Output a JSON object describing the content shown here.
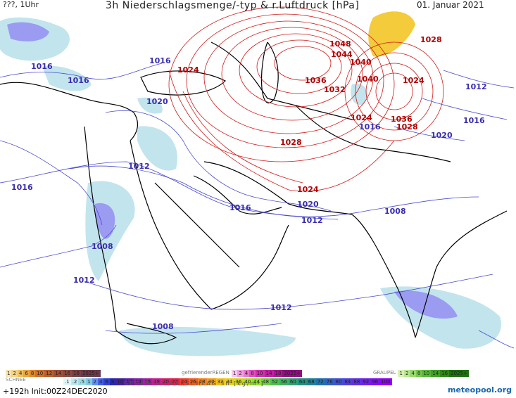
{
  "header": {
    "left": "???, 1Uhr",
    "title": "3h Niederschlagsmenge/-typ & r.Luftdruck [hPa]",
    "date": "01. Januar 2021"
  },
  "isobar_labels": [
    {
      "text": "1016",
      "kind": "lo"
    },
    {
      "text": "1016",
      "kind": "lo"
    },
    {
      "text": "1016",
      "kind": "lo"
    },
    {
      "text": "1024",
      "kind": "hi"
    },
    {
      "text": "1020",
      "kind": "lo"
    },
    {
      "text": "1048",
      "kind": "hi"
    },
    {
      "text": "1044",
      "kind": "hi"
    },
    {
      "text": "1040",
      "kind": "hi"
    },
    {
      "text": "1036",
      "kind": "hi"
    },
    {
      "text": "1032",
      "kind": "hi"
    },
    {
      "text": "1040",
      "kind": "hi"
    },
    {
      "text": "1028",
      "kind": "hi"
    },
    {
      "text": "1024",
      "kind": "hi"
    },
    {
      "text": "1012",
      "kind": "lo"
    },
    {
      "text": "1016",
      "kind": "lo"
    },
    {
      "text": "1024",
      "kind": "hi"
    },
    {
      "text": "1036",
      "kind": "hi"
    },
    {
      "text": "1028",
      "kind": "hi"
    },
    {
      "text": "1016",
      "kind": "lo"
    },
    {
      "text": "1020",
      "kind": "lo"
    },
    {
      "text": "1028",
      "kind": "hi"
    },
    {
      "text": "1012",
      "kind": "lo"
    },
    {
      "text": "1016",
      "kind": "lo"
    },
    {
      "text": "1024",
      "kind": "hi"
    },
    {
      "text": "1020",
      "kind": "lo"
    },
    {
      "text": "1016",
      "kind": "lo"
    },
    {
      "text": "1012",
      "kind": "lo"
    },
    {
      "text": "1008",
      "kind": "lo"
    },
    {
      "text": "1008",
      "kind": "lo"
    },
    {
      "text": "1012",
      "kind": "lo"
    },
    {
      "text": "1012",
      "kind": "lo"
    },
    {
      "text": "1008",
      "kind": "lo"
    }
  ],
  "legend": {
    "snow_label": "SCHNEE",
    "freezing_rain_label": "gefrierenderREGEN",
    "graupel_label": "GRAUPEL",
    "snow_scale": [
      "1",
      "2",
      "4",
      "6",
      "8",
      "10",
      "12",
      "14",
      "16",
      "18",
      "2025+"
    ],
    "rain_scale": [
      "1",
      "2",
      "4",
      "8",
      "10",
      "14",
      "18",
      "2025+"
    ],
    "graupel_scale": [
      "1",
      "2",
      "4",
      "8",
      "10",
      "14",
      "16",
      "2025+"
    ],
    "total_scale": [
      ".1",
      ".2",
      ".5",
      "1",
      "2",
      "4",
      "6",
      "8",
      "10",
      "12",
      "14",
      "16",
      "18",
      "20",
      "22",
      "24",
      "26",
      "28",
      "30",
      "32",
      "34",
      "36",
      "40",
      "44",
      "48",
      "52",
      "56",
      "60",
      "64",
      "68",
      "72",
      "76",
      "80",
      "84",
      "88",
      "92",
      "96",
      "100"
    ],
    "total_label": "GESAMTNIEDERSCHLAG 3h [kg/m²]"
  },
  "footer": {
    "init": "+192h  Init:00Z24DEC2020",
    "brand": "meteopool.org"
  },
  "colors": {
    "isobar_high": "#d01818",
    "isobar_low": "#4a4ad0",
    "precip_light": "#b8e0ea",
    "precip_snow": "#8a8af0",
    "graupel": "#f2c21a",
    "coast": "#000000"
  }
}
